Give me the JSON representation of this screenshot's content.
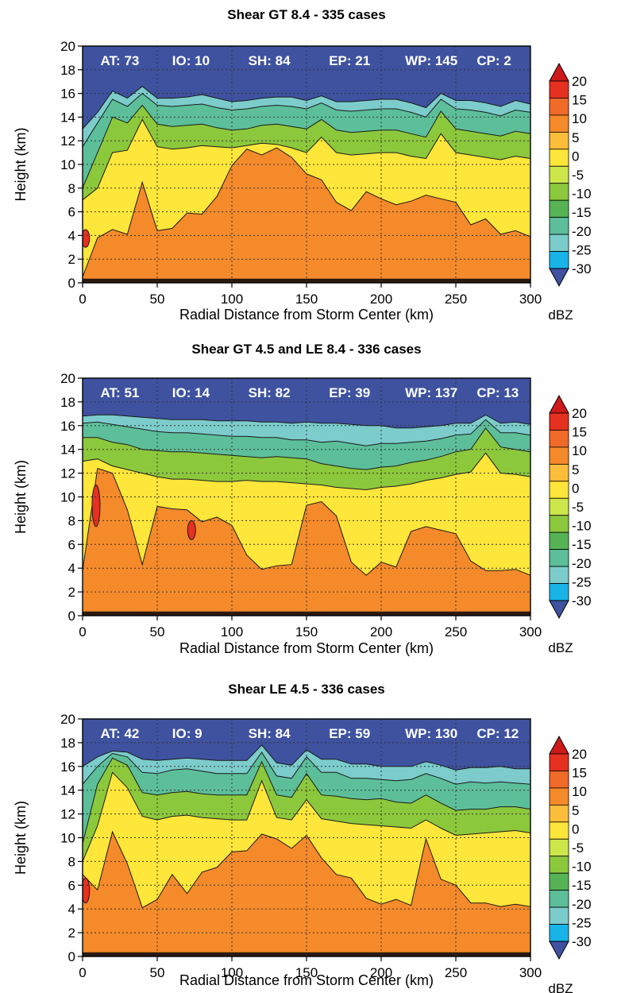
{
  "figure": {
    "units": "dBZ"
  },
  "chart_data": [
    {
      "type": "heatmap",
      "title": "Shear GT  8.4 - 335 cases",
      "xlabel": "Radial Distance from Storm Center (km)",
      "ylabel": "Height (km)",
      "xlim": [
        0,
        300
      ],
      "ylim": [
        0,
        20
      ],
      "x_ticks": [
        0,
        50,
        100,
        150,
        200,
        250,
        300
      ],
      "y_ticks": [
        0,
        2,
        4,
        6,
        8,
        10,
        12,
        14,
        16,
        18,
        20
      ],
      "grid": true,
      "annotations": [
        "AT:  73",
        "IO: 10",
        "SH: 84",
        "EP: 21",
        "WP: 145",
        "CP:  2"
      ],
      "layer_tops_km": {
        "ge_minus30": [
          13.0,
          14.4,
          16.2,
          15.6,
          16.6,
          15.6,
          15.6,
          15.7,
          15.9,
          15.6,
          15.3,
          15.4,
          15.6,
          15.7,
          15.7,
          15.4,
          15.8,
          15.3,
          15.3,
          15.4,
          15.5,
          15.5,
          15.2,
          14.8,
          16.0,
          15.4,
          15.4,
          15.2,
          14.9,
          15.4,
          15.1
        ],
        "ge_minus20": [
          11.5,
          13.5,
          15.5,
          14.9,
          16.0,
          15.0,
          14.9,
          15.0,
          15.1,
          14.8,
          14.6,
          14.7,
          14.9,
          15.0,
          14.9,
          14.7,
          15.2,
          14.6,
          14.5,
          14.6,
          14.7,
          14.7,
          14.4,
          14.0,
          15.5,
          14.7,
          14.6,
          14.4,
          14.1,
          14.6,
          14.4
        ],
        "ge_minus10": [
          8.0,
          11.0,
          14.0,
          13.5,
          15.0,
          13.4,
          13.2,
          13.3,
          13.4,
          13.1,
          12.9,
          13.0,
          13.3,
          13.4,
          13.2,
          13.0,
          13.8,
          12.9,
          12.7,
          12.8,
          12.9,
          12.9,
          12.6,
          12.3,
          14.5,
          13.0,
          12.8,
          12.6,
          12.4,
          12.8,
          12.6
        ],
        "ge_0": [
          7.0,
          8.0,
          11.0,
          11.2,
          13.8,
          11.5,
          11.3,
          11.4,
          11.6,
          11.5,
          11.4,
          11.6,
          11.8,
          11.7,
          11.4,
          11.0,
          12.3,
          11.0,
          10.8,
          10.9,
          11.0,
          11.0,
          10.7,
          10.5,
          12.6,
          11.0,
          10.8,
          10.6,
          10.4,
          10.7,
          10.5
        ],
        "ge_5": [
          0.5,
          3.8,
          4.5,
          4.1,
          8.5,
          4.4,
          4.6,
          5.9,
          5.8,
          7.3,
          9.9,
          11.3,
          10.8,
          11.4,
          10.6,
          9.2,
          8.7,
          6.8,
          6.1,
          7.7,
          7.1,
          6.6,
          6.9,
          7.4,
          7.1,
          6.8,
          4.9,
          5.4,
          4.1,
          4.4,
          3.9
        ]
      },
      "max_cores_km": [
        [
          2,
          3.0,
          4.5
        ]
      ]
    },
    {
      "type": "heatmap",
      "title": "Shear GT  4.5 and LE  8.4 - 336 cases",
      "xlabel": "Radial Distance from Storm Center (km)",
      "ylabel": "Height (km)",
      "xlim": [
        0,
        300
      ],
      "ylim": [
        0,
        20
      ],
      "x_ticks": [
        0,
        50,
        100,
        150,
        200,
        250,
        300
      ],
      "y_ticks": [
        0,
        2,
        4,
        6,
        8,
        10,
        12,
        14,
        16,
        18,
        20
      ],
      "grid": true,
      "annotations": [
        "AT:  51",
        "IO: 14",
        "SH: 82",
        "EP: 39",
        "WP: 137",
        "CP: 13"
      ],
      "layer_tops_km": {
        "ge_minus30": [
          16.8,
          16.9,
          16.9,
          16.8,
          16.7,
          16.6,
          16.5,
          16.5,
          16.5,
          16.4,
          16.4,
          16.4,
          16.3,
          16.3,
          16.2,
          16.3,
          16.2,
          16.2,
          16.1,
          16.0,
          16.0,
          15.8,
          15.8,
          15.9,
          16.0,
          16.2,
          16.2,
          16.9,
          16.2,
          16.3,
          16.1
        ],
        "ge_minus20": [
          16.2,
          16.3,
          16.1,
          15.9,
          15.7,
          15.5,
          15.4,
          15.4,
          15.3,
          15.2,
          15.1,
          15.1,
          15.0,
          15.0,
          14.8,
          14.8,
          14.6,
          14.7,
          14.5,
          14.3,
          14.5,
          14.5,
          14.6,
          14.7,
          14.9,
          15.2,
          15.3,
          16.5,
          15.4,
          15.4,
          15.2
        ],
        "ge_minus10": [
          15.0,
          15.0,
          14.6,
          14.4,
          14.0,
          13.9,
          13.8,
          13.8,
          13.7,
          13.6,
          13.5,
          13.4,
          13.3,
          13.4,
          13.3,
          13.2,
          12.8,
          12.6,
          12.4,
          12.3,
          12.5,
          12.6,
          12.9,
          13.1,
          13.4,
          13.8,
          14.0,
          15.8,
          14.2,
          14.0,
          13.8
        ],
        "ge_0": [
          13.0,
          13.2,
          12.6,
          12.3,
          12.0,
          11.7,
          11.5,
          11.5,
          11.4,
          11.3,
          11.3,
          11.4,
          11.3,
          11.3,
          11.2,
          11.1,
          11.0,
          10.8,
          10.7,
          10.6,
          10.8,
          10.9,
          11.1,
          11.4,
          11.6,
          11.9,
          12.1,
          13.7,
          12.0,
          11.9,
          11.7
        ],
        "ge_5": [
          3.8,
          12.4,
          12.0,
          8.9,
          4.3,
          9.2,
          9.0,
          8.9,
          7.9,
          8.3,
          7.6,
          5.1,
          3.9,
          4.2,
          4.3,
          9.3,
          9.6,
          8.4,
          4.5,
          3.4,
          4.5,
          4.1,
          7.1,
          7.5,
          7.2,
          6.9,
          4.6,
          3.8,
          3.8,
          3.9,
          3.4
        ]
      },
      "max_cores_km": [
        [
          9,
          7.5,
          11.0
        ],
        [
          73,
          6.4,
          8.0
        ]
      ]
    },
    {
      "type": "heatmap",
      "title": "Shear LE  4.5 - 336 cases",
      "xlabel": "Radial Distance from Storm Center (km)",
      "ylabel": "Height (km)",
      "xlim": [
        0,
        300
      ],
      "ylim": [
        0,
        20
      ],
      "x_ticks": [
        0,
        50,
        100,
        150,
        200,
        250,
        300
      ],
      "y_ticks": [
        0,
        2,
        4,
        6,
        8,
        10,
        12,
        14,
        16,
        18,
        20
      ],
      "grid": true,
      "annotations": [
        "AT:  42",
        "IO:  9",
        "SH: 84",
        "EP: 59",
        "WP: 130",
        "CP: 12"
      ],
      "layer_tops_km": {
        "ge_minus30": [
          16.0,
          16.8,
          17.3,
          17.2,
          16.6,
          16.5,
          16.6,
          16.7,
          16.6,
          16.5,
          16.5,
          16.5,
          17.8,
          16.3,
          16.1,
          17.4,
          16.6,
          16.6,
          16.2,
          16.2,
          16.0,
          16.0,
          16.0,
          16.4,
          16.1,
          15.7,
          15.9,
          15.9,
          16.0,
          15.8,
          15.8
        ],
        "ge_minus20": [
          14.5,
          16.0,
          17.1,
          16.8,
          15.5,
          15.4,
          15.7,
          15.8,
          15.6,
          15.4,
          15.4,
          15.4,
          17.2,
          15.2,
          15.0,
          16.8,
          15.5,
          15.5,
          15.0,
          15.0,
          14.9,
          14.8,
          14.9,
          15.4,
          15.0,
          14.5,
          14.7,
          14.6,
          14.7,
          14.6,
          14.5
        ],
        "ge_minus10": [
          9.5,
          14.5,
          16.7,
          16.1,
          13.8,
          13.6,
          13.8,
          13.9,
          13.7,
          13.6,
          13.6,
          13.6,
          16.4,
          13.6,
          13.4,
          15.4,
          13.6,
          13.5,
          13.3,
          13.2,
          13.3,
          13.0,
          12.9,
          13.6,
          12.9,
          12.3,
          12.4,
          12.4,
          12.6,
          12.6,
          12.4
        ],
        "ge_0": [
          8.0,
          11.0,
          15.5,
          14.2,
          11.8,
          11.5,
          11.8,
          11.9,
          11.7,
          11.6,
          11.5,
          11.5,
          14.8,
          11.7,
          11.5,
          13.2,
          11.6,
          11.4,
          11.2,
          11.1,
          11.0,
          10.9,
          10.8,
          11.5,
          10.8,
          10.2,
          10.3,
          10.4,
          10.5,
          10.6,
          10.4
        ],
        "ge_5": [
          6.9,
          5.6,
          10.5,
          7.8,
          4.1,
          4.8,
          6.9,
          5.3,
          7.1,
          7.5,
          8.8,
          8.9,
          10.3,
          9.9,
          9.1,
          10.2,
          8.3,
          6.9,
          6.6,
          4.9,
          4.4,
          4.8,
          4.3,
          9.9,
          6.5,
          6.0,
          4.5,
          4.5,
          4.2,
          4.4,
          4.2
        ]
      },
      "max_cores_km": [
        [
          2,
          4.5,
          6.6
        ]
      ]
    }
  ],
  "colorbar": {
    "levels": [
      "20",
      "15",
      "10",
      "5",
      "0",
      "-5",
      "-10",
      "-15",
      "-20",
      "-25",
      "-30"
    ],
    "colors": [
      "#cc1a1a",
      "#e63020",
      "#f06a28",
      "#f58a2a",
      "#fbbd3a",
      "#ffe63a",
      "#cde64a",
      "#8cc83c",
      "#56b454",
      "#5cbf9a",
      "#7ccccc",
      "#18b4e8",
      "#3e52a0"
    ],
    "upper_extension": "#cc1a1a",
    "lower_extension": "#3e52a0"
  }
}
